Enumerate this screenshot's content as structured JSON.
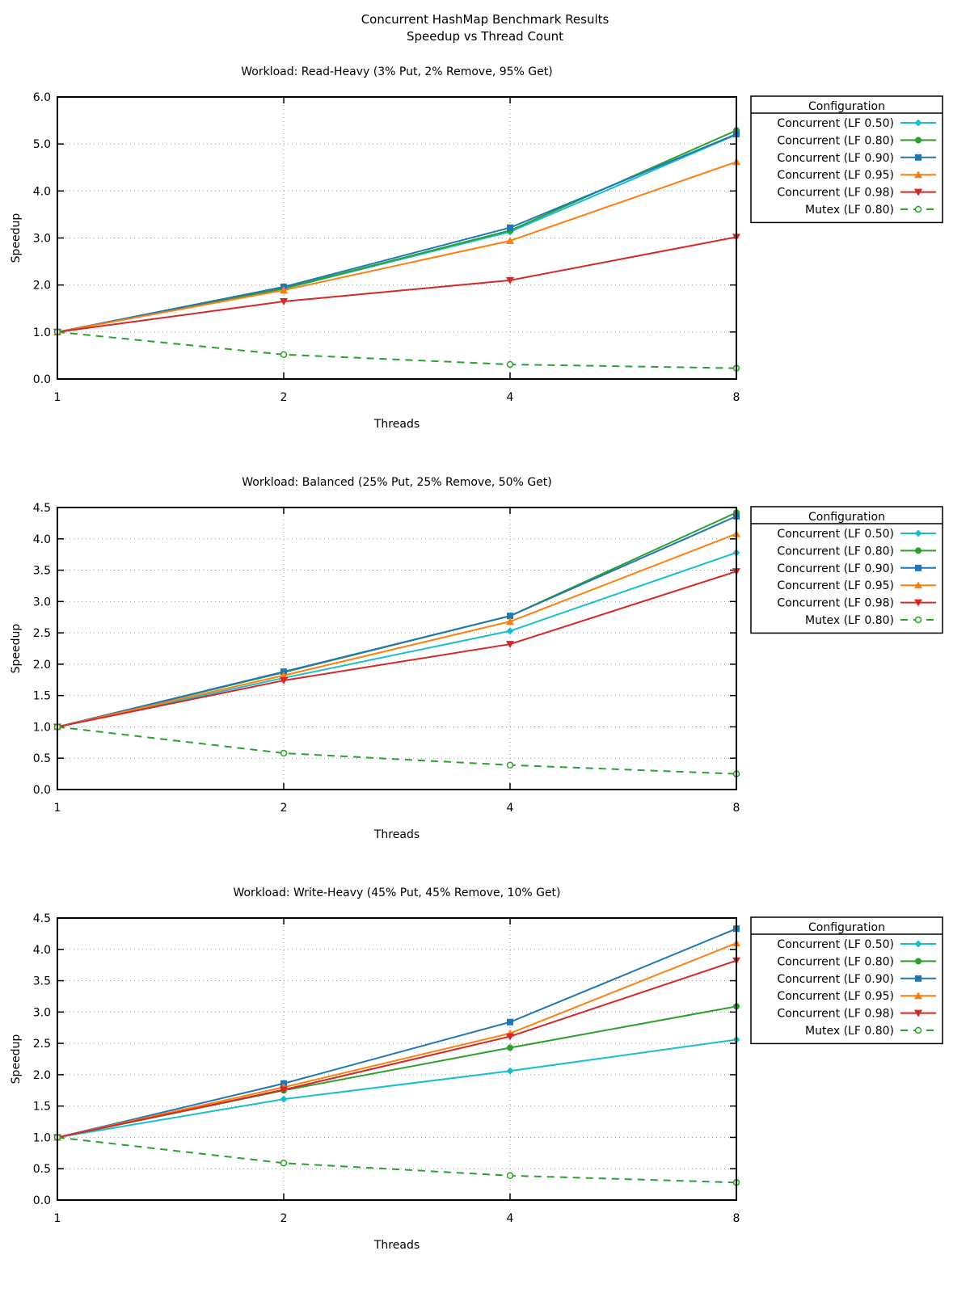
{
  "title": "Concurrent HashMap Benchmark Results",
  "subtitle": "Speedup vs Thread Count",
  "colors": {
    "LF 0.50": "#17becf",
    "LF 0.80": "#2ca02c",
    "LF 0.90": "#1f77b4",
    "LF 0.95": "#ff7f0e",
    "LF 0.98": "#d62728",
    "Mutex": "#2ca02c"
  },
  "chart_data": [
    {
      "type": "line",
      "title": "Workload: Read-Heavy (3% Put, 2% Remove, 95% Get)",
      "xlabel": "Threads",
      "ylabel": "Speedup",
      "x": [
        1,
        2,
        4,
        8
      ],
      "xscale": "log2",
      "ylim": [
        0,
        6
      ],
      "yticks": [
        0,
        1,
        2,
        3,
        4,
        5,
        6
      ],
      "ytick_labels": [
        "0.0",
        "1.0",
        "2.0",
        "3.0",
        "4.0",
        "5.0",
        "6.0"
      ],
      "grid": true,
      "legend_title": "Configuration",
      "legend_placement": "outside-right",
      "series": [
        {
          "name": "Concurrent (LF 0.50)",
          "color": "#17becf",
          "marker": "diamond",
          "dash": false,
          "values": [
            1.0,
            1.92,
            3.13,
            5.2
          ]
        },
        {
          "name": "Concurrent (LF 0.80)",
          "color": "#2ca02c",
          "marker": "circle",
          "dash": false,
          "values": [
            1.0,
            1.93,
            3.16,
            5.29
          ]
        },
        {
          "name": "Concurrent (LF 0.90)",
          "color": "#1f77b4",
          "marker": "square",
          "dash": false,
          "values": [
            1.0,
            1.96,
            3.22,
            5.21
          ]
        },
        {
          "name": "Concurrent (LF 0.95)",
          "color": "#ff7f0e",
          "marker": "triangle-up",
          "dash": false,
          "values": [
            1.0,
            1.89,
            2.94,
            4.62
          ]
        },
        {
          "name": "Concurrent (LF 0.98)",
          "color": "#d62728",
          "marker": "triangle-down",
          "dash": false,
          "values": [
            1.0,
            1.65,
            2.1,
            3.02
          ]
        },
        {
          "name": "Mutex (LF 0.80)",
          "color": "#2ca02c",
          "marker": "open-circle",
          "dash": true,
          "values": [
            1.0,
            0.52,
            0.31,
            0.23
          ]
        }
      ]
    },
    {
      "type": "line",
      "title": "Workload: Balanced (25% Put, 25% Remove, 50% Get)",
      "xlabel": "Threads",
      "ylabel": "Speedup",
      "x": [
        1,
        2,
        4,
        8
      ],
      "xscale": "log2",
      "ylim": [
        0,
        4.5
      ],
      "yticks": [
        0,
        0.5,
        1,
        1.5,
        2,
        2.5,
        3,
        3.5,
        4,
        4.5
      ],
      "ytick_labels": [
        "0.0",
        "0.5",
        "1.0",
        "1.5",
        "2.0",
        "2.5",
        "3.0",
        "3.5",
        "4.0",
        "4.5"
      ],
      "grid": true,
      "legend_title": "Configuration",
      "legend_placement": "outside-right",
      "series": [
        {
          "name": "Concurrent (LF 0.50)",
          "color": "#17becf",
          "marker": "diamond",
          "dash": false,
          "values": [
            1.0,
            1.78,
            2.53,
            3.78
          ]
        },
        {
          "name": "Concurrent (LF 0.80)",
          "color": "#2ca02c",
          "marker": "circle",
          "dash": false,
          "values": [
            1.0,
            1.87,
            2.77,
            4.42
          ]
        },
        {
          "name": "Concurrent (LF 0.90)",
          "color": "#1f77b4",
          "marker": "square",
          "dash": false,
          "values": [
            1.0,
            1.88,
            2.77,
            4.36
          ]
        },
        {
          "name": "Concurrent (LF 0.95)",
          "color": "#ff7f0e",
          "marker": "triangle-up",
          "dash": false,
          "values": [
            1.0,
            1.82,
            2.68,
            4.08
          ]
        },
        {
          "name": "Concurrent (LF 0.98)",
          "color": "#d62728",
          "marker": "triangle-down",
          "dash": false,
          "values": [
            1.0,
            1.74,
            2.32,
            3.48
          ]
        },
        {
          "name": "Mutex (LF 0.80)",
          "color": "#2ca02c",
          "marker": "open-circle",
          "dash": true,
          "values": [
            1.0,
            0.58,
            0.39,
            0.25
          ]
        }
      ]
    },
    {
      "type": "line",
      "title": "Workload: Write-Heavy (45% Put, 45% Remove, 10% Get)",
      "xlabel": "Threads",
      "ylabel": "Speedup",
      "x": [
        1,
        2,
        4,
        8
      ],
      "xscale": "log2",
      "ylim": [
        0,
        4.5
      ],
      "yticks": [
        0,
        0.5,
        1,
        1.5,
        2,
        2.5,
        3,
        3.5,
        4,
        4.5
      ],
      "ytick_labels": [
        "0.0",
        "0.5",
        "1.0",
        "1.5",
        "2.0",
        "2.5",
        "3.0",
        "3.5",
        "4.0",
        "4.5"
      ],
      "grid": true,
      "legend_title": "Configuration",
      "legend_placement": "outside-right",
      "series": [
        {
          "name": "Concurrent (LF 0.50)",
          "color": "#17becf",
          "marker": "diamond",
          "dash": false,
          "values": [
            1.0,
            1.61,
            2.06,
            2.56
          ]
        },
        {
          "name": "Concurrent (LF 0.80)",
          "color": "#2ca02c",
          "marker": "circle",
          "dash": false,
          "values": [
            1.0,
            1.75,
            2.43,
            3.09
          ]
        },
        {
          "name": "Concurrent (LF 0.90)",
          "color": "#1f77b4",
          "marker": "square",
          "dash": false,
          "values": [
            1.0,
            1.86,
            2.84,
            4.33
          ]
        },
        {
          "name": "Concurrent (LF 0.95)",
          "color": "#ff7f0e",
          "marker": "triangle-up",
          "dash": false,
          "values": [
            1.0,
            1.8,
            2.66,
            4.1
          ]
        },
        {
          "name": "Concurrent (LF 0.98)",
          "color": "#d62728",
          "marker": "triangle-down",
          "dash": false,
          "values": [
            1.0,
            1.76,
            2.61,
            3.82
          ]
        },
        {
          "name": "Mutex (LF 0.80)",
          "color": "#2ca02c",
          "marker": "open-circle",
          "dash": true,
          "values": [
            1.0,
            0.59,
            0.39,
            0.28
          ]
        }
      ]
    }
  ]
}
